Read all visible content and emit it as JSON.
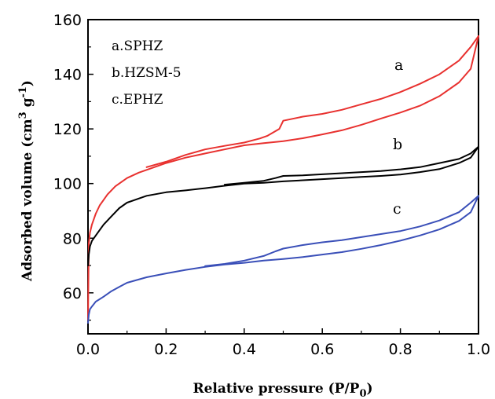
{
  "chart_data": {
    "type": "line",
    "xlabel": "Relative pressure (P/P",
    "xlabel_sub": "0",
    "xlabel_end": ")",
    "ylabel": "Adsorbed volume (cm",
    "ylabel_sup1": "3",
    "ylabel_mid": " g",
    "ylabel_sup2": "-1",
    "ylabel_end": ")",
    "xlim": [
      0.0,
      1.0
    ],
    "ylim": [
      45,
      160
    ],
    "xticks": [
      "0.0",
      "0.2",
      "0.4",
      "0.6",
      "0.8",
      "1.0"
    ],
    "yticks": [
      "60",
      "80",
      "100",
      "120",
      "140",
      "160"
    ],
    "legend": [
      "a.SPHZ",
      "b.HZSM-5",
      "c.EPHZ"
    ],
    "curve_labels": [
      "a",
      "b",
      "c"
    ],
    "series": [
      {
        "name": "a.SPHZ",
        "color": "#e8312f",
        "adsorption": {
          "x": [
            0.0,
            0.002,
            0.005,
            0.01,
            0.02,
            0.03,
            0.05,
            0.07,
            0.1,
            0.13,
            0.15,
            0.2,
            0.25,
            0.3,
            0.35,
            0.4,
            0.45,
            0.5,
            0.55,
            0.6,
            0.65,
            0.7,
            0.75,
            0.8,
            0.85,
            0.9,
            0.95,
            0.98,
            1.0
          ],
          "y": [
            50,
            78,
            82,
            85,
            89,
            92,
            96,
            99,
            102,
            104,
            105,
            107.5,
            109.5,
            111,
            112.5,
            114,
            114.8,
            115.5,
            116.6,
            118,
            119.5,
            121.5,
            123.8,
            126,
            128.5,
            132,
            137,
            142,
            154
          ]
        },
        "desorption": {
          "x": [
            1.0,
            0.98,
            0.95,
            0.9,
            0.85,
            0.8,
            0.75,
            0.7,
            0.65,
            0.6,
            0.55,
            0.5,
            0.49,
            0.46,
            0.44,
            0.4,
            0.35,
            0.3,
            0.25,
            0.2,
            0.15
          ],
          "y": [
            154,
            150,
            145,
            140,
            136.5,
            133.5,
            131,
            129,
            127,
            125.5,
            124.5,
            123,
            120,
            117.5,
            116.5,
            115,
            113.8,
            112.5,
            110.5,
            108,
            106
          ]
        }
      },
      {
        "name": "b.HZSM-5",
        "color": "#000000",
        "adsorption": {
          "x": [
            0.0,
            0.002,
            0.005,
            0.01,
            0.02,
            0.04,
            0.06,
            0.08,
            0.1,
            0.15,
            0.2,
            0.25,
            0.3,
            0.35,
            0.4,
            0.45,
            0.5,
            0.55,
            0.6,
            0.65,
            0.7,
            0.75,
            0.8,
            0.85,
            0.9,
            0.95,
            0.98,
            1.0
          ],
          "y": [
            70,
            74,
            77,
            79,
            81,
            85,
            88,
            91,
            93,
            95.5,
            96.8,
            97.5,
            98.3,
            99.2,
            100,
            100.3,
            100.8,
            101.2,
            101.6,
            102,
            102.4,
            102.8,
            103.3,
            104.2,
            105.3,
            107.5,
            109.5,
            113.5
          ]
        },
        "desorption": {
          "x": [
            1.0,
            0.98,
            0.95,
            0.9,
            0.85,
            0.8,
            0.75,
            0.7,
            0.65,
            0.6,
            0.55,
            0.5,
            0.48,
            0.45,
            0.4,
            0.35
          ],
          "y": [
            113.5,
            111,
            109,
            107.5,
            106,
            105.2,
            104.6,
            104.2,
            103.8,
            103.4,
            103,
            102.8,
            102,
            101,
            100.3,
            99.6
          ]
        }
      },
      {
        "name": "c.EPHZ",
        "color": "#3a4fb8",
        "adsorption": {
          "x": [
            0.0,
            0.002,
            0.005,
            0.01,
            0.02,
            0.04,
            0.06,
            0.08,
            0.1,
            0.15,
            0.2,
            0.25,
            0.3,
            0.35,
            0.4,
            0.45,
            0.5,
            0.55,
            0.6,
            0.65,
            0.7,
            0.75,
            0.8,
            0.85,
            0.9,
            0.95,
            0.98,
            1.0
          ],
          "y": [
            49,
            52,
            54,
            55,
            56.8,
            58.6,
            60.6,
            62.2,
            63.7,
            65.7,
            67.1,
            68.4,
            69.5,
            70.4,
            71,
            71.8,
            72.4,
            73.1,
            74,
            74.9,
            76.1,
            77.5,
            79.1,
            81,
            83.2,
            86.3,
            89.5,
            95.5
          ]
        },
        "desorption": {
          "x": [
            1.0,
            0.98,
            0.95,
            0.9,
            0.85,
            0.8,
            0.75,
            0.7,
            0.65,
            0.6,
            0.55,
            0.5,
            0.48,
            0.45,
            0.4,
            0.35,
            0.3
          ],
          "y": [
            95.5,
            93,
            89.5,
            86.5,
            84.3,
            82.6,
            81.5,
            80.4,
            79.3,
            78.5,
            77.5,
            76.2,
            75.2,
            73.5,
            71.8,
            70.6,
            69.8
          ]
        }
      }
    ]
  }
}
